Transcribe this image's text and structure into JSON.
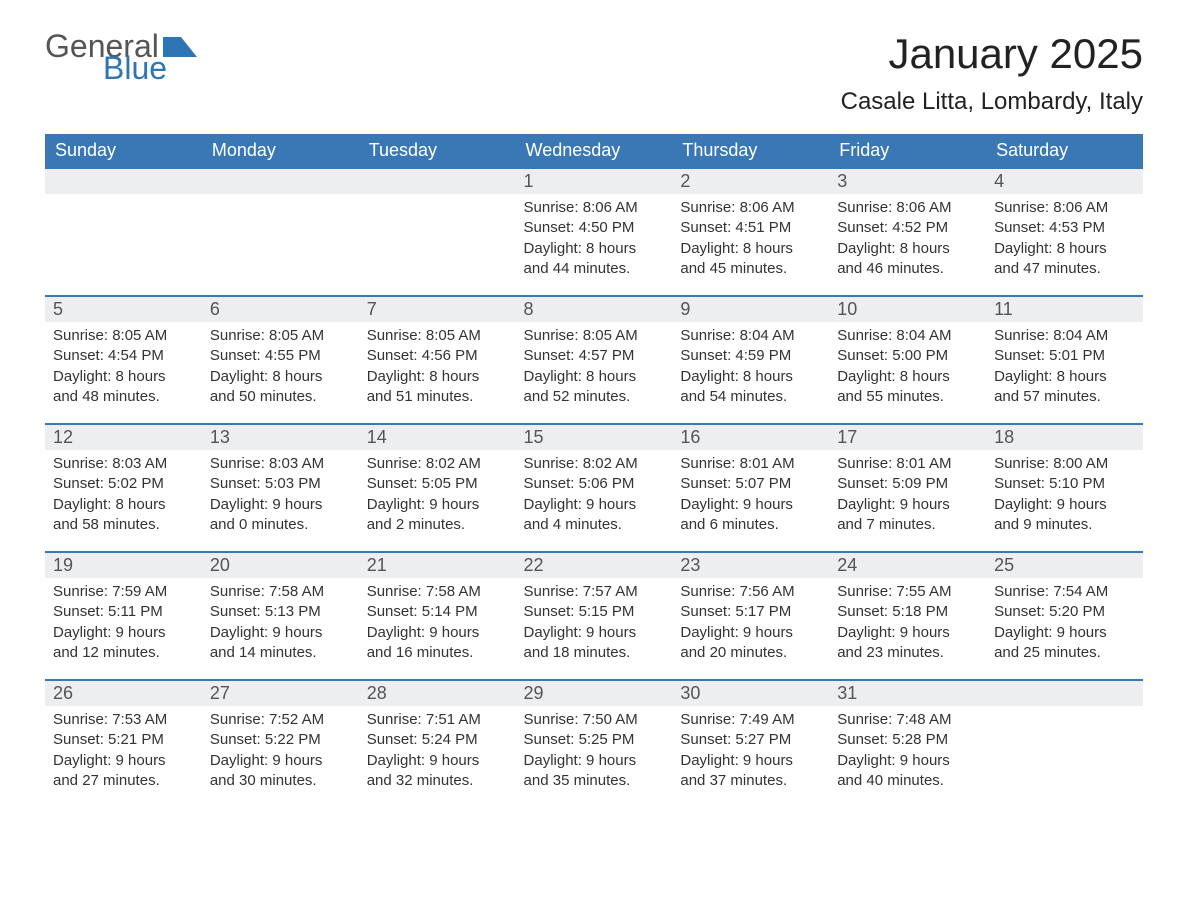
{
  "logo": {
    "text1": "General",
    "text2": "Blue",
    "icon_color": "#2e75b6"
  },
  "title": "January 2025",
  "location": "Casale Litta, Lombardy, Italy",
  "colors": {
    "header_bg": "#3a77b5",
    "header_text": "#ffffff",
    "daynum_bg": "#eceeef",
    "daynum_text": "#555555",
    "body_text": "#333333",
    "border": "#3a77b5",
    "background": "#ffffff"
  },
  "typography": {
    "title_fontsize": 42,
    "location_fontsize": 24,
    "header_fontsize": 18,
    "daynum_fontsize": 18,
    "body_fontsize": 15
  },
  "columns": [
    "Sunday",
    "Monday",
    "Tuesday",
    "Wednesday",
    "Thursday",
    "Friday",
    "Saturday"
  ],
  "weeks": [
    [
      {
        "blank": true
      },
      {
        "blank": true
      },
      {
        "blank": true
      },
      {
        "day": 1,
        "sunrise": "8:06 AM",
        "sunset": "4:50 PM",
        "daylight": "8 hours and 44 minutes."
      },
      {
        "day": 2,
        "sunrise": "8:06 AM",
        "sunset": "4:51 PM",
        "daylight": "8 hours and 45 minutes."
      },
      {
        "day": 3,
        "sunrise": "8:06 AM",
        "sunset": "4:52 PM",
        "daylight": "8 hours and 46 minutes."
      },
      {
        "day": 4,
        "sunrise": "8:06 AM",
        "sunset": "4:53 PM",
        "daylight": "8 hours and 47 minutes."
      }
    ],
    [
      {
        "day": 5,
        "sunrise": "8:05 AM",
        "sunset": "4:54 PM",
        "daylight": "8 hours and 48 minutes."
      },
      {
        "day": 6,
        "sunrise": "8:05 AM",
        "sunset": "4:55 PM",
        "daylight": "8 hours and 50 minutes."
      },
      {
        "day": 7,
        "sunrise": "8:05 AM",
        "sunset": "4:56 PM",
        "daylight": "8 hours and 51 minutes."
      },
      {
        "day": 8,
        "sunrise": "8:05 AM",
        "sunset": "4:57 PM",
        "daylight": "8 hours and 52 minutes."
      },
      {
        "day": 9,
        "sunrise": "8:04 AM",
        "sunset": "4:59 PM",
        "daylight": "8 hours and 54 minutes."
      },
      {
        "day": 10,
        "sunrise": "8:04 AM",
        "sunset": "5:00 PM",
        "daylight": "8 hours and 55 minutes."
      },
      {
        "day": 11,
        "sunrise": "8:04 AM",
        "sunset": "5:01 PM",
        "daylight": "8 hours and 57 minutes."
      }
    ],
    [
      {
        "day": 12,
        "sunrise": "8:03 AM",
        "sunset": "5:02 PM",
        "daylight": "8 hours and 58 minutes."
      },
      {
        "day": 13,
        "sunrise": "8:03 AM",
        "sunset": "5:03 PM",
        "daylight": "9 hours and 0 minutes."
      },
      {
        "day": 14,
        "sunrise": "8:02 AM",
        "sunset": "5:05 PM",
        "daylight": "9 hours and 2 minutes."
      },
      {
        "day": 15,
        "sunrise": "8:02 AM",
        "sunset": "5:06 PM",
        "daylight": "9 hours and 4 minutes."
      },
      {
        "day": 16,
        "sunrise": "8:01 AM",
        "sunset": "5:07 PM",
        "daylight": "9 hours and 6 minutes."
      },
      {
        "day": 17,
        "sunrise": "8:01 AM",
        "sunset": "5:09 PM",
        "daylight": "9 hours and 7 minutes."
      },
      {
        "day": 18,
        "sunrise": "8:00 AM",
        "sunset": "5:10 PM",
        "daylight": "9 hours and 9 minutes."
      }
    ],
    [
      {
        "day": 19,
        "sunrise": "7:59 AM",
        "sunset": "5:11 PM",
        "daylight": "9 hours and 12 minutes."
      },
      {
        "day": 20,
        "sunrise": "7:58 AM",
        "sunset": "5:13 PM",
        "daylight": "9 hours and 14 minutes."
      },
      {
        "day": 21,
        "sunrise": "7:58 AM",
        "sunset": "5:14 PM",
        "daylight": "9 hours and 16 minutes."
      },
      {
        "day": 22,
        "sunrise": "7:57 AM",
        "sunset": "5:15 PM",
        "daylight": "9 hours and 18 minutes."
      },
      {
        "day": 23,
        "sunrise": "7:56 AM",
        "sunset": "5:17 PM",
        "daylight": "9 hours and 20 minutes."
      },
      {
        "day": 24,
        "sunrise": "7:55 AM",
        "sunset": "5:18 PM",
        "daylight": "9 hours and 23 minutes."
      },
      {
        "day": 25,
        "sunrise": "7:54 AM",
        "sunset": "5:20 PM",
        "daylight": "9 hours and 25 minutes."
      }
    ],
    [
      {
        "day": 26,
        "sunrise": "7:53 AM",
        "sunset": "5:21 PM",
        "daylight": "9 hours and 27 minutes."
      },
      {
        "day": 27,
        "sunrise": "7:52 AM",
        "sunset": "5:22 PM",
        "daylight": "9 hours and 30 minutes."
      },
      {
        "day": 28,
        "sunrise": "7:51 AM",
        "sunset": "5:24 PM",
        "daylight": "9 hours and 32 minutes."
      },
      {
        "day": 29,
        "sunrise": "7:50 AM",
        "sunset": "5:25 PM",
        "daylight": "9 hours and 35 minutes."
      },
      {
        "day": 30,
        "sunrise": "7:49 AM",
        "sunset": "5:27 PM",
        "daylight": "9 hours and 37 minutes."
      },
      {
        "day": 31,
        "sunrise": "7:48 AM",
        "sunset": "5:28 PM",
        "daylight": "9 hours and 40 minutes."
      },
      {
        "blank": true
      }
    ]
  ],
  "labels": {
    "sunrise": "Sunrise:",
    "sunset": "Sunset:",
    "daylight": "Daylight:"
  }
}
